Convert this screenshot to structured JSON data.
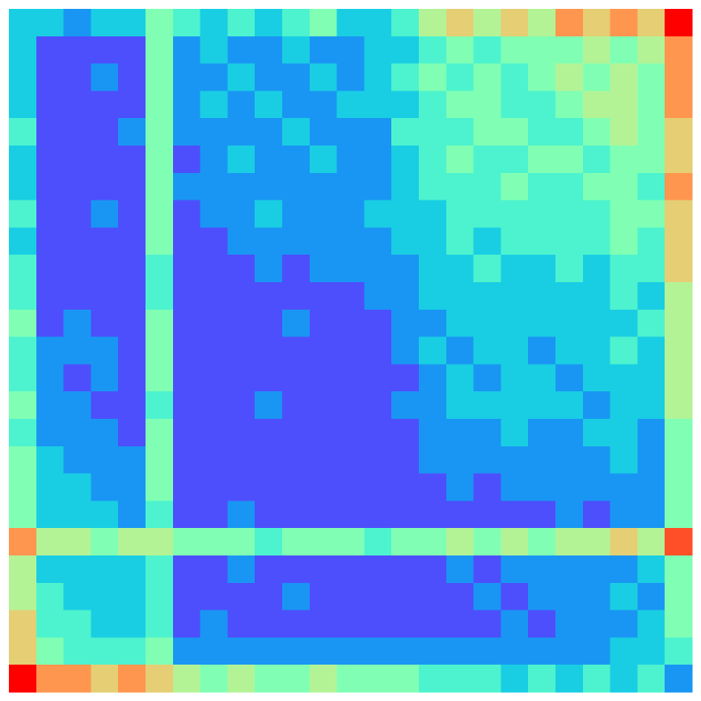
{
  "chart_data": {
    "type": "heatmap",
    "colormap": "rainbow",
    "zlim": [
      0,
      10
    ],
    "values": [
      [
        3,
        3,
        2,
        3,
        3,
        5,
        4,
        3,
        4,
        3,
        4,
        5,
        3,
        3,
        4,
        6,
        7,
        6,
        7,
        6,
        8,
        7,
        8,
        7,
        10
      ],
      [
        3,
        1,
        1,
        1,
        1,
        5,
        2,
        3,
        2,
        2,
        3,
        2,
        2,
        3,
        3,
        4,
        5,
        4,
        5,
        5,
        5,
        6,
        5,
        6,
        8
      ],
      [
        3,
        1,
        1,
        2,
        1,
        5,
        2,
        2,
        3,
        2,
        2,
        3,
        2,
        3,
        4,
        5,
        4,
        5,
        4,
        5,
        6,
        5,
        6,
        5,
        8
      ],
      [
        3,
        1,
        1,
        1,
        1,
        5,
        2,
        3,
        2,
        3,
        2,
        2,
        3,
        3,
        3,
        4,
        5,
        5,
        4,
        4,
        5,
        6,
        6,
        5,
        8
      ],
      [
        4,
        1,
        1,
        1,
        2,
        5,
        2,
        2,
        2,
        2,
        3,
        2,
        2,
        2,
        4,
        4,
        4,
        5,
        5,
        4,
        4,
        5,
        6,
        5,
        7
      ],
      [
        3,
        1,
        1,
        1,
        1,
        5,
        1,
        2,
        3,
        2,
        2,
        3,
        2,
        2,
        3,
        4,
        5,
        4,
        4,
        5,
        5,
        4,
        5,
        5,
        7
      ],
      [
        3,
        1,
        1,
        1,
        1,
        5,
        2,
        2,
        2,
        2,
        2,
        2,
        2,
        2,
        3,
        4,
        4,
        4,
        5,
        4,
        4,
        5,
        5,
        4,
        8
      ],
      [
        4,
        1,
        1,
        2,
        1,
        5,
        1,
        2,
        2,
        3,
        2,
        2,
        2,
        3,
        3,
        3,
        4,
        4,
        4,
        4,
        4,
        4,
        5,
        5,
        7
      ],
      [
        3,
        1,
        1,
        1,
        1,
        5,
        1,
        1,
        2,
        2,
        2,
        2,
        2,
        2,
        3,
        3,
        4,
        3,
        4,
        4,
        4,
        4,
        5,
        4,
        7
      ],
      [
        4,
        1,
        1,
        1,
        1,
        4,
        1,
        1,
        1,
        2,
        1,
        2,
        2,
        2,
        2,
        3,
        3,
        4,
        3,
        3,
        4,
        3,
        4,
        4,
        7
      ],
      [
        4,
        1,
        1,
        1,
        1,
        4,
        1,
        1,
        1,
        1,
        1,
        1,
        1,
        2,
        2,
        3,
        3,
        3,
        3,
        3,
        3,
        3,
        4,
        3,
        6
      ],
      [
        5,
        1,
        2,
        1,
        1,
        5,
        1,
        1,
        1,
        1,
        2,
        1,
        1,
        1,
        2,
        2,
        3,
        3,
        3,
        3,
        3,
        3,
        3,
        4,
        6
      ],
      [
        4,
        2,
        2,
        2,
        1,
        5,
        1,
        1,
        1,
        1,
        1,
        1,
        1,
        1,
        2,
        3,
        2,
        3,
        3,
        2,
        3,
        3,
        4,
        3,
        6
      ],
      [
        4,
        2,
        1,
        2,
        1,
        5,
        1,
        1,
        1,
        1,
        1,
        1,
        1,
        1,
        1,
        2,
        3,
        2,
        3,
        3,
        2,
        3,
        3,
        3,
        6
      ],
      [
        5,
        2,
        2,
        1,
        1,
        4,
        1,
        1,
        1,
        2,
        1,
        1,
        1,
        1,
        2,
        2,
        3,
        3,
        3,
        3,
        3,
        2,
        3,
        3,
        6
      ],
      [
        4,
        2,
        2,
        2,
        1,
        5,
        1,
        1,
        1,
        1,
        1,
        1,
        1,
        1,
        1,
        2,
        2,
        2,
        3,
        2,
        2,
        3,
        3,
        2,
        5
      ],
      [
        5,
        3,
        2,
        2,
        2,
        5,
        1,
        1,
        1,
        1,
        1,
        1,
        1,
        1,
        1,
        2,
        2,
        2,
        2,
        2,
        2,
        2,
        3,
        2,
        5
      ],
      [
        5,
        3,
        3,
        2,
        2,
        5,
        1,
        1,
        1,
        1,
        1,
        1,
        1,
        1,
        1,
        1,
        2,
        1,
        2,
        2,
        2,
        2,
        2,
        2,
        5
      ],
      [
        5,
        3,
        3,
        3,
        2,
        4,
        1,
        1,
        2,
        1,
        1,
        1,
        1,
        1,
        1,
        1,
        1,
        1,
        1,
        1,
        2,
        1,
        2,
        2,
        5
      ],
      [
        8,
        6,
        6,
        5,
        6,
        6,
        5,
        5,
        5,
        4,
        5,
        5,
        5,
        4,
        5,
        5,
        6,
        5,
        6,
        5,
        6,
        6,
        7,
        6,
        9
      ],
      [
        6,
        3,
        3,
        3,
        3,
        4,
        1,
        1,
        2,
        1,
        1,
        1,
        1,
        1,
        1,
        1,
        2,
        1,
        2,
        2,
        2,
        2,
        2,
        3,
        5
      ],
      [
        6,
        4,
        3,
        3,
        3,
        4,
        1,
        1,
        1,
        1,
        2,
        1,
        1,
        1,
        1,
        1,
        1,
        2,
        1,
        2,
        2,
        2,
        3,
        2,
        5
      ],
      [
        7,
        4,
        4,
        3,
        3,
        4,
        1,
        2,
        1,
        1,
        1,
        1,
        1,
        1,
        1,
        1,
        1,
        1,
        2,
        1,
        2,
        2,
        2,
        3,
        5
      ],
      [
        7,
        5,
        4,
        4,
        4,
        5,
        2,
        2,
        2,
        2,
        2,
        2,
        2,
        2,
        2,
        2,
        2,
        2,
        2,
        2,
        2,
        2,
        3,
        3,
        4
      ],
      [
        10,
        8,
        8,
        7,
        8,
        7,
        6,
        5,
        6,
        5,
        5,
        6,
        5,
        5,
        5,
        4,
        4,
        4,
        3,
        4,
        3,
        4,
        3,
        4,
        2
      ]
    ]
  }
}
